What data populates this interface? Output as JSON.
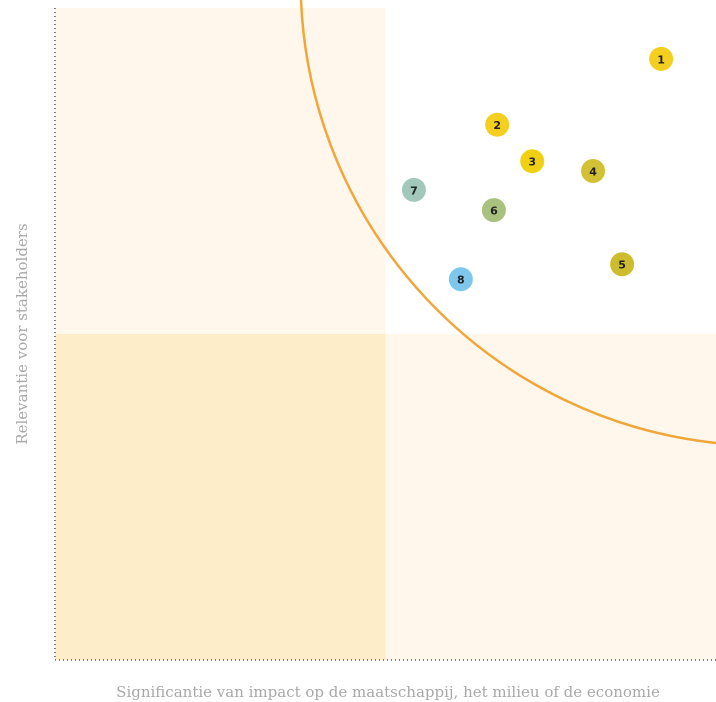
{
  "chart_data": {
    "type": "scatter",
    "xlabel": "Significantie van impact op de maatschappij, het milieu of de economie",
    "ylabel": "Relevantie voor stakeholders",
    "xlim": [
      0,
      100
    ],
    "ylim": [
      0,
      100
    ],
    "points": [
      {
        "label": "1",
        "x": 91.7,
        "y": 92.2,
        "color": "#f4cf1f"
      },
      {
        "label": "2",
        "x": 66.9,
        "y": 82.1,
        "color": "#f4cf1f"
      },
      {
        "label": "3",
        "x": 72.2,
        "y": 76.5,
        "color": "#f0d012"
      },
      {
        "label": "4",
        "x": 81.4,
        "y": 75.0,
        "color": "#d2c134"
      },
      {
        "label": "5",
        "x": 85.8,
        "y": 60.7,
        "color": "#cdbd2e"
      },
      {
        "label": "6",
        "x": 66.4,
        "y": 69.0,
        "color": "#a9c17f"
      },
      {
        "label": "7",
        "x": 54.3,
        "y": 72.1,
        "color": "#a2c8bb"
      },
      {
        "label": "8",
        "x": 61.4,
        "y": 58.4,
        "color": "#7ec7ec"
      }
    ]
  }
}
